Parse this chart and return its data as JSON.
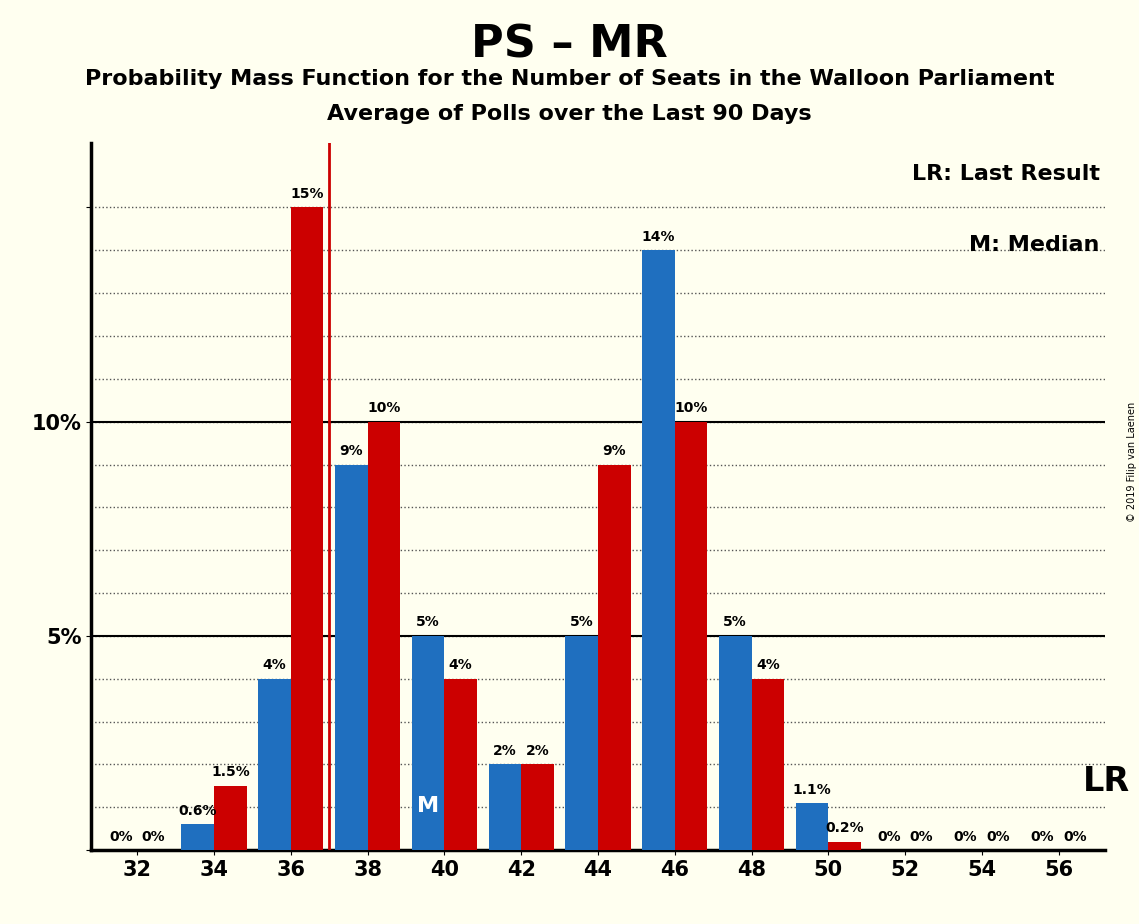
{
  "title": "PS – MR",
  "subtitle1": "Probability Mass Function for the Number of Seats in the Walloon Parliament",
  "subtitle2": "Average of Polls over the Last 90 Days",
  "watermark": "© 2019 Filip van Laenen",
  "seats": [
    32,
    34,
    36,
    38,
    40,
    42,
    44,
    46,
    48,
    50,
    52,
    54,
    56
  ],
  "blue_values": [
    0.0,
    0.6,
    4.0,
    9.0,
    5.0,
    2.0,
    5.0,
    14.0,
    5.0,
    1.1,
    0.0,
    0.0,
    0.0
  ],
  "red_values": [
    0.0,
    1.5,
    15.0,
    10.0,
    4.0,
    2.0,
    9.0,
    10.0,
    4.0,
    0.2,
    0.0,
    0.0,
    0.0
  ],
  "blue_labels": [
    "0%",
    "0.6%",
    "4%",
    "9%",
    "5%",
    "2%",
    "5%",
    "14%",
    "5%",
    "1.1%",
    "0%",
    "0%",
    "0%"
  ],
  "red_labels": [
    "0%",
    "1.5%",
    "15%",
    "10%",
    "4%",
    "2%",
    "9%",
    "10%",
    "4%",
    "0.2%",
    "0%",
    "0%",
    "0%"
  ],
  "blue_color": "#1F6FBF",
  "red_color": "#CC0000",
  "bg_color": "#FFFFF0",
  "grid_color": "#555555",
  "title_color": "#000000",
  "ylim_max": 16.5,
  "yticks": [
    0,
    5,
    10,
    15
  ],
  "ytick_labels": [
    "",
    "5%",
    "10%",
    ""
  ],
  "lr_line_seat": 37.0,
  "median_seat": 40,
  "bar_width": 0.85,
  "bar_half": 0.2125,
  "label_fontsize": 10,
  "tick_fontsize": 15,
  "title_fontsize": 32,
  "subtitle_fontsize": 16,
  "legend_fontsize": 16,
  "lr_fontsize": 24,
  "m_fontsize": 16
}
